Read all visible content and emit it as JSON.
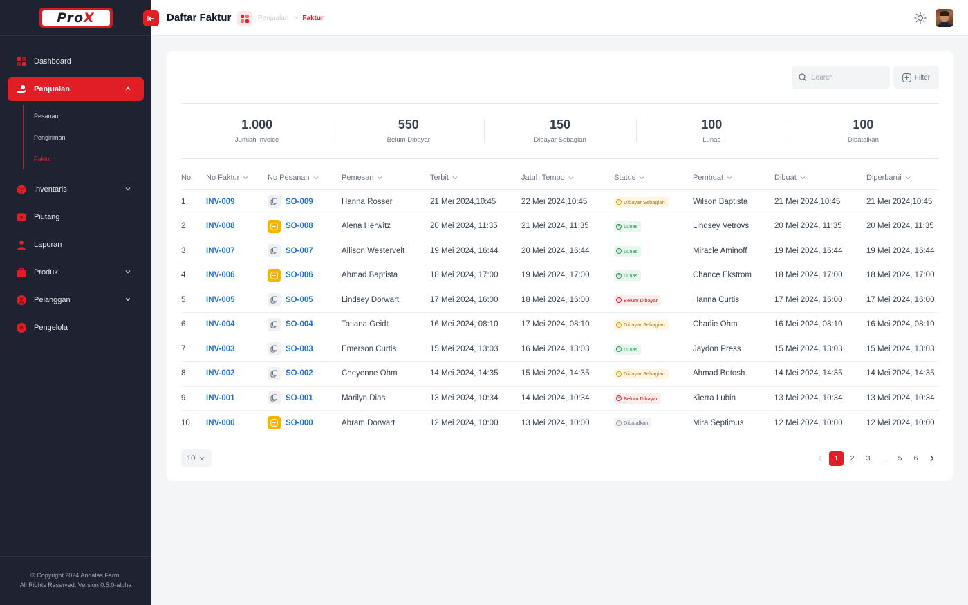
{
  "brand": {
    "logo_text_a": "Pro",
    "logo_text_b": "X"
  },
  "sidebar": {
    "items": [
      {
        "label": "Dashboard"
      },
      {
        "label": "Penjualan"
      },
      {
        "label": "Inventaris"
      },
      {
        "label": "Piutang"
      },
      {
        "label": "Laporan"
      },
      {
        "label": "Produk"
      },
      {
        "label": "Pelanggan"
      },
      {
        "label": "Pengelola"
      }
    ],
    "sub_items": [
      {
        "label": "Pesanan"
      },
      {
        "label": "Pengiriman"
      },
      {
        "label": "Faktur"
      }
    ],
    "footer_line1": "© Copyright 2024 Andalas Farm.",
    "footer_line2": "All Rights Reserved. Version 0.5.0-alpha"
  },
  "header": {
    "title": "Daftar Faktur",
    "breadcrumb_parent": "Penjualan",
    "breadcrumb_sep": ">",
    "breadcrumb_current": "Faktur"
  },
  "toolbar": {
    "search_placeholder": "Search",
    "filter_label": "Filter"
  },
  "stats": [
    {
      "value": "1.000",
      "label": "Jumlah Invoice"
    },
    {
      "value": "550",
      "label": "Belum Dibayar"
    },
    {
      "value": "150",
      "label": "Dibayar Sebagian"
    },
    {
      "value": "100",
      "label": "Lunas"
    },
    {
      "value": "100",
      "label": "Dibatalkan"
    }
  ],
  "table": {
    "columns": [
      "No",
      "No Faktur",
      "No Pesanan",
      "Pemesan",
      "Terbit",
      "Jatuh Tempo",
      "Status",
      "Pembuat",
      "Dibuat",
      "Diperbarui"
    ],
    "rows": [
      {
        "no": "1",
        "faktur": "INV-009",
        "so": "SO-009",
        "so_type": "gray",
        "pemesan": "Hanna Rosser",
        "terbit": "21 Mei 2024,10:45",
        "jatuh": "22 Mei 2024,10:45",
        "status": "Dibayar Sebagian",
        "status_kind": "partial",
        "pembuat": "Wilson Baptista",
        "dibuat": "21 Mei 2024,10:45",
        "diperbarui": "21 Mei 2024,10:45"
      },
      {
        "no": "2",
        "faktur": "INV-008",
        "so": "SO-008",
        "so_type": "yellow",
        "pemesan": "Alena Herwitz",
        "terbit": "20 Mei 2024, 11:35",
        "jatuh": "21 Mei 2024, 11:35",
        "status": "Lunas",
        "status_kind": "paid",
        "pembuat": "Lindsey Vetrovs",
        "dibuat": "20 Mei 2024, 11:35",
        "diperbarui": "20 Mei 2024, 11:35"
      },
      {
        "no": "3",
        "faktur": "INV-007",
        "so": "SO-007",
        "so_type": "gray",
        "pemesan": "Allison Westervelt",
        "terbit": "19 Mei 2024, 16:44",
        "jatuh": "20 Mei 2024, 16:44",
        "status": "Lunas",
        "status_kind": "paid",
        "pembuat": "Miracle Aminoff",
        "dibuat": "19 Mei 2024, 16:44",
        "diperbarui": "19 Mei 2024, 16:44"
      },
      {
        "no": "4",
        "faktur": "INV-006",
        "so": "SO-006",
        "so_type": "yellow",
        "pemesan": "Ahmad Baptista",
        "terbit": "18 Mei 2024, 17:00",
        "jatuh": "19 Mei 2024, 17:00",
        "status": "Lunas",
        "status_kind": "paid",
        "pembuat": "Chance Ekstrom",
        "dibuat": "18 Mei 2024, 17:00",
        "diperbarui": "18 Mei 2024, 17:00"
      },
      {
        "no": "5",
        "faktur": "INV-005",
        "so": "SO-005",
        "so_type": "gray",
        "pemesan": "Lindsey Dorwart",
        "terbit": "17 Mei 2024, 16:00",
        "jatuh": "18 Mei 2024, 16:00",
        "status": "Belum Dibayar",
        "status_kind": "unpaid",
        "pembuat": "Hanna Curtis",
        "dibuat": "17 Mei 2024, 16:00",
        "diperbarui": "17 Mei 2024, 16:00"
      },
      {
        "no": "6",
        "faktur": "INV-004",
        "so": "SO-004",
        "so_type": "gray",
        "pemesan": "Tatiana Geidt",
        "terbit": "16 Mei 2024, 08:10",
        "jatuh": "17 Mei 2024, 08:10",
        "status": "Dibayar Sebagian",
        "status_kind": "partial",
        "pembuat": "Charlie Ohm",
        "dibuat": "16 Mei 2024, 08:10",
        "diperbarui": "16 Mei 2024, 08:10"
      },
      {
        "no": "7",
        "faktur": "INV-003",
        "so": "SO-003",
        "so_type": "gray",
        "pemesan": "Emerson Curtis",
        "terbit": "15 Mei 2024, 13:03",
        "jatuh": "16 Mei 2024, 13:03",
        "status": "Lunas",
        "status_kind": "paid",
        "pembuat": "Jaydon Press",
        "dibuat": "15 Mei 2024, 13:03",
        "diperbarui": "15 Mei 2024, 13:03"
      },
      {
        "no": "8",
        "faktur": "INV-002",
        "so": "SO-002",
        "so_type": "gray",
        "pemesan": "Cheyenne Ohm",
        "terbit": "14 Mei 2024, 14:35",
        "jatuh": "15 Mei 2024, 14:35",
        "status": "Dibayar Sebagian",
        "status_kind": "partial",
        "pembuat": "Ahmad Botosh",
        "dibuat": "14 Mei 2024, 14:35",
        "diperbarui": "14 Mei 2024, 14:35"
      },
      {
        "no": "9",
        "faktur": "INV-001",
        "so": "SO-001",
        "so_type": "gray",
        "pemesan": "Marilyn Dias",
        "terbit": "13 Mei 2024, 10:34",
        "jatuh": "14 Mei 2024, 10:34",
        "status": "Belum Dibayar",
        "status_kind": "unpaid",
        "pembuat": "Kierra Lubin",
        "dibuat": "13 Mei 2024, 10:34",
        "diperbarui": "13 Mei 2024, 10:34"
      },
      {
        "no": "10",
        "faktur": "INV-000",
        "so": "SO-000",
        "so_type": "yellow",
        "pemesan": "Abram Dorwart",
        "terbit": "12 Mei 2024, 10:00",
        "jatuh": "13 Mei 2024, 10:00",
        "status": "Dibatalkan",
        "status_kind": "cancel",
        "pembuat": "Mira Septimus",
        "dibuat": "12 Mei 2024, 10:00",
        "diperbarui": "12 Mei 2024, 10:00"
      }
    ]
  },
  "pagination": {
    "page_size": "10",
    "pages": [
      "1",
      "2",
      "3",
      "...",
      "5",
      "6"
    ],
    "current": "1"
  },
  "colors": {
    "accent": "#e11d25",
    "sidebar_bg": "#1f2230",
    "link": "#1d6fd8"
  }
}
